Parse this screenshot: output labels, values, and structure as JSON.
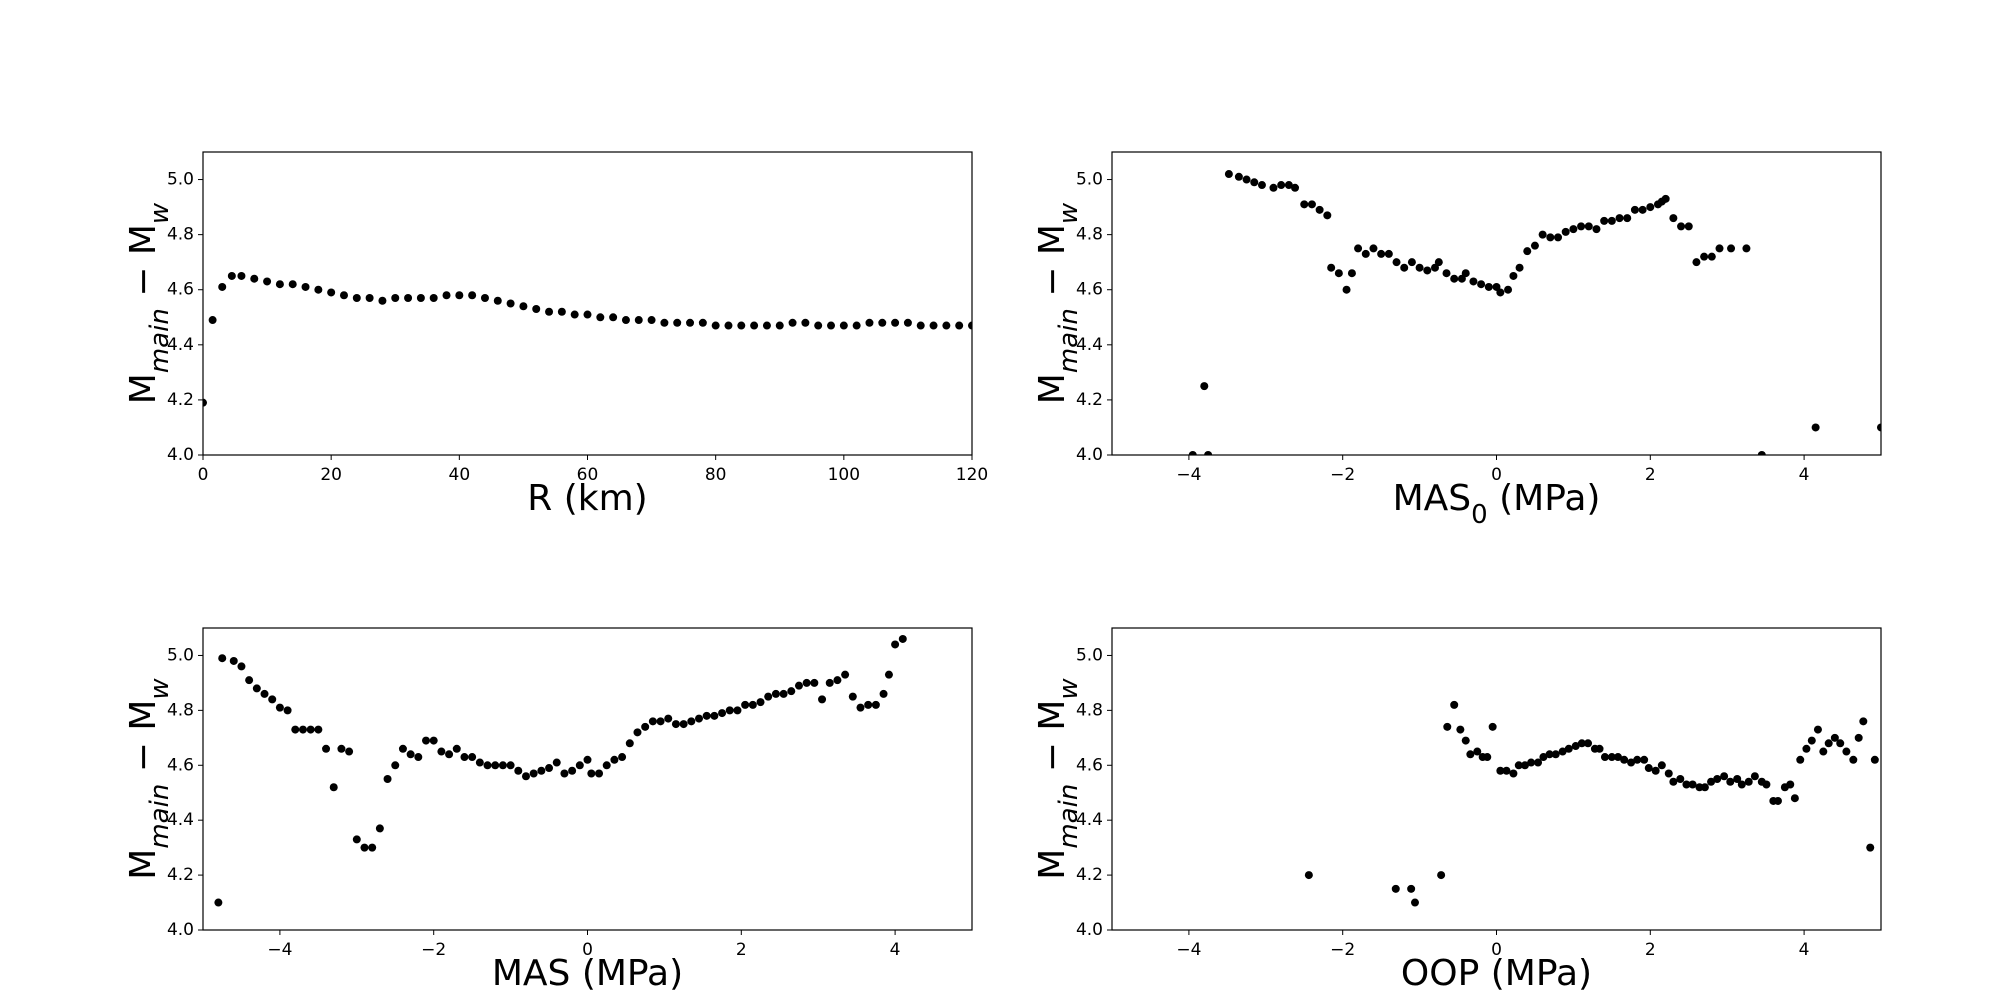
{
  "chart_data": [
    {
      "type": "scatter",
      "color": "#000000",
      "xlabel": "R (km)",
      "ylabel": [
        "M",
        "main",
        " − M",
        "w"
      ],
      "xlim": [
        0,
        120
      ],
      "ylim": [
        4.0,
        5.1
      ],
      "xticks": [
        0,
        20,
        40,
        60,
        80,
        100,
        120
      ],
      "yticks": [
        {
          "value": 4,
          "label": "4.0"
        },
        4.2,
        4.4,
        4.6,
        4.8,
        {
          "value": 5,
          "label": "5.0"
        }
      ],
      "x": [
        0,
        1.5,
        3,
        4.5,
        6,
        8,
        10,
        12,
        14,
        16,
        18,
        20,
        22,
        24,
        26,
        28,
        30,
        32,
        34,
        36,
        38,
        40,
        42,
        44,
        46,
        48,
        50,
        52,
        54,
        56,
        58,
        60,
        62,
        64,
        66,
        68,
        70,
        72,
        74,
        76,
        78,
        80,
        82,
        84,
        86,
        88,
        90,
        92,
        94,
        96,
        98,
        100,
        102,
        104,
        106,
        108,
        110,
        112,
        114,
        116,
        118,
        120
      ],
      "y": [
        4.19,
        4.49,
        4.61,
        4.65,
        4.65,
        4.64,
        4.63,
        4.62,
        4.62,
        4.61,
        4.6,
        4.59,
        4.58,
        4.57,
        4.57,
        4.56,
        4.57,
        4.57,
        4.57,
        4.57,
        4.58,
        4.58,
        4.58,
        4.57,
        4.56,
        4.55,
        4.54,
        4.53,
        4.52,
        4.52,
        4.51,
        4.51,
        4.5,
        4.5,
        4.49,
        4.49,
        4.49,
        4.48,
        4.48,
        4.48,
        4.48,
        4.47,
        4.47,
        4.47,
        4.47,
        4.47,
        4.47,
        4.48,
        4.48,
        4.47,
        4.47,
        4.47,
        4.47,
        4.48,
        4.48,
        4.48,
        4.48,
        4.47,
        4.47,
        4.47,
        4.47,
        4.47
      ]
    },
    {
      "type": "scatter",
      "color": "#000000",
      "xlabel": [
        "MAS",
        "0",
        " (MPa)"
      ],
      "ylabel": [
        "M",
        "main",
        " − M",
        "w"
      ],
      "xlim": [
        -5,
        5
      ],
      "ylim": [
        4.0,
        5.1
      ],
      "xticks": [
        {
          "value": -4,
          "label": "−4"
        },
        {
          "value": -2,
          "label": "−2"
        },
        0,
        2,
        4
      ],
      "yticks": [
        {
          "value": 4,
          "label": "4.0"
        },
        4.2,
        4.4,
        4.6,
        4.8,
        {
          "value": 5,
          "label": "5.0"
        }
      ],
      "x": [
        -3.95,
        -3.8,
        -3.75,
        -3.48,
        -3.35,
        -3.25,
        -3.15,
        -3.05,
        -2.9,
        -2.8,
        -2.7,
        -2.62,
        -2.5,
        -2.4,
        -2.3,
        -2.2,
        -2.15,
        -2.05,
        -1.95,
        -1.88,
        -1.8,
        -1.7,
        -1.6,
        -1.5,
        -1.4,
        -1.3,
        -1.2,
        -1.1,
        -1.0,
        -0.9,
        -0.8,
        -0.75,
        -0.65,
        -0.55,
        -0.45,
        -0.4,
        -0.3,
        -0.2,
        -0.1,
        0,
        0.05,
        0.15,
        0.22,
        0.3,
        0.4,
        0.5,
        0.6,
        0.7,
        0.8,
        0.9,
        1.0,
        1.1,
        1.2,
        1.3,
        1.4,
        1.5,
        1.6,
        1.7,
        1.8,
        1.9,
        2.0,
        2.1,
        2.15,
        2.2,
        2.3,
        2.4,
        2.5,
        2.6,
        2.7,
        2.8,
        2.9,
        3.05,
        3.25,
        3.45,
        4.15,
        5.0
      ],
      "y": [
        4.0,
        4.25,
        4.0,
        5.02,
        5.01,
        5.0,
        4.99,
        4.98,
        4.97,
        4.98,
        4.98,
        4.97,
        4.91,
        4.91,
        4.89,
        4.87,
        4.68,
        4.66,
        4.6,
        4.66,
        4.75,
        4.73,
        4.75,
        4.73,
        4.73,
        4.7,
        4.68,
        4.7,
        4.68,
        4.67,
        4.68,
        4.7,
        4.66,
        4.64,
        4.64,
        4.66,
        4.63,
        4.62,
        4.61,
        4.61,
        4.59,
        4.6,
        4.65,
        4.68,
        4.74,
        4.76,
        4.8,
        4.79,
        4.79,
        4.81,
        4.82,
        4.83,
        4.83,
        4.82,
        4.85,
        4.85,
        4.86,
        4.86,
        4.89,
        4.89,
        4.9,
        4.91,
        4.92,
        4.93,
        4.86,
        4.83,
        4.83,
        4.7,
        4.72,
        4.72,
        4.75,
        4.75,
        4.75,
        4.0,
        4.1,
        4.1
      ]
    },
    {
      "type": "scatter",
      "color": "#000000",
      "xlabel": "MAS (MPa)",
      "ylabel": [
        "M",
        "main",
        " − M",
        "w"
      ],
      "xlim": [
        -5,
        5
      ],
      "ylim": [
        4.0,
        5.1
      ],
      "xticks": [
        {
          "value": -4,
          "label": "−4"
        },
        {
          "value": -2,
          "label": "−2"
        },
        0,
        2,
        4
      ],
      "yticks": [
        {
          "value": 4,
          "label": "4.0"
        },
        4.2,
        4.4,
        4.6,
        4.8,
        {
          "value": 5,
          "label": "5.0"
        }
      ],
      "x": [
        -4.8,
        -4.75,
        -4.6,
        -4.5,
        -4.4,
        -4.3,
        -4.2,
        -4.1,
        -4.0,
        -3.9,
        -3.8,
        -3.7,
        -3.6,
        -3.5,
        -3.4,
        -3.3,
        -3.2,
        -3.1,
        -3.0,
        -2.9,
        -2.8,
        -2.7,
        -2.6,
        -2.5,
        -2.4,
        -2.3,
        -2.2,
        -2.1,
        -2.0,
        -1.9,
        -1.8,
        -1.7,
        -1.6,
        -1.5,
        -1.4,
        -1.3,
        -1.2,
        -1.1,
        -1.0,
        -0.9,
        -0.8,
        -0.7,
        -0.6,
        -0.5,
        -0.4,
        -0.3,
        -0.2,
        -0.1,
        0,
        0.05,
        0.15,
        0.25,
        0.35,
        0.45,
        0.55,
        0.65,
        0.75,
        0.85,
        0.95,
        1.05,
        1.15,
        1.25,
        1.35,
        1.45,
        1.55,
        1.65,
        1.75,
        1.85,
        1.95,
        2.05,
        2.15,
        2.25,
        2.35,
        2.45,
        2.55,
        2.65,
        2.75,
        2.85,
        2.95,
        3.05,
        3.15,
        3.25,
        3.35,
        3.45,
        3.55,
        3.65,
        3.75,
        3.85,
        3.92,
        4.0,
        4.1
      ],
      "y": [
        4.1,
        4.99,
        4.98,
        4.96,
        4.91,
        4.88,
        4.86,
        4.84,
        4.81,
        4.8,
        4.73,
        4.73,
        4.73,
        4.73,
        4.66,
        4.52,
        4.66,
        4.65,
        4.33,
        4.3,
        4.3,
        4.37,
        4.55,
        4.6,
        4.66,
        4.64,
        4.63,
        4.69,
        4.69,
        4.65,
        4.64,
        4.66,
        4.63,
        4.63,
        4.61,
        4.6,
        4.6,
        4.6,
        4.6,
        4.58,
        4.56,
        4.57,
        4.58,
        4.59,
        4.61,
        4.57,
        4.58,
        4.6,
        4.62,
        4.57,
        4.57,
        4.6,
        4.62,
        4.63,
        4.68,
        4.72,
        4.74,
        4.76,
        4.76,
        4.77,
        4.75,
        4.75,
        4.76,
        4.77,
        4.78,
        4.78,
        4.79,
        4.8,
        4.8,
        4.82,
        4.82,
        4.83,
        4.85,
        4.86,
        4.86,
        4.87,
        4.89,
        4.9,
        4.9,
        4.84,
        4.9,
        4.91,
        4.93,
        4.85,
        4.81,
        4.82,
        4.82,
        4.86,
        4.93,
        5.04,
        5.06
      ]
    },
    {
      "type": "scatter",
      "color": "#000000",
      "xlabel": "OOP (MPa)",
      "ylabel": [
        "M",
        "main",
        " − M",
        "w"
      ],
      "xlim": [
        -5,
        5
      ],
      "ylim": [
        4.0,
        5.1
      ],
      "xticks": [
        {
          "value": -4,
          "label": "−4"
        },
        {
          "value": -2,
          "label": "−2"
        },
        0,
        2,
        4
      ],
      "yticks": [
        {
          "value": 4,
          "label": "4.0"
        },
        4.2,
        4.4,
        4.6,
        4.8,
        {
          "value": 5,
          "label": "5.0"
        }
      ],
      "x": [
        -2.44,
        -1.31,
        -1.11,
        -1.06,
        -0.72,
        -0.64,
        -0.55,
        -0.47,
        -0.4,
        -0.34,
        -0.25,
        -0.18,
        -0.12,
        -0.05,
        0.05,
        0.13,
        0.22,
        0.29,
        0.37,
        0.45,
        0.54,
        0.61,
        0.69,
        0.77,
        0.86,
        0.94,
        1.03,
        1.11,
        1.19,
        1.28,
        1.34,
        1.41,
        1.5,
        1.58,
        1.66,
        1.75,
        1.83,
        1.92,
        1.98,
        2.07,
        2.15,
        2.24,
        2.3,
        2.39,
        2.47,
        2.55,
        2.64,
        2.71,
        2.79,
        2.87,
        2.96,
        3.04,
        3.13,
        3.19,
        3.28,
        3.36,
        3.45,
        3.51,
        3.6,
        3.66,
        3.75,
        3.82,
        3.88,
        3.95,
        4.03,
        4.1,
        4.18,
        4.25,
        4.32,
        4.4,
        4.47,
        4.55,
        4.64,
        4.71,
        4.77,
        4.86,
        4.92
      ],
      "y": [
        4.2,
        4.15,
        4.15,
        4.1,
        4.2,
        4.74,
        4.82,
        4.73,
        4.69,
        4.64,
        4.65,
        4.63,
        4.63,
        4.74,
        4.58,
        4.58,
        4.57,
        4.6,
        4.6,
        4.61,
        4.61,
        4.63,
        4.64,
        4.64,
        4.65,
        4.66,
        4.67,
        4.68,
        4.68,
        4.66,
        4.66,
        4.63,
        4.63,
        4.63,
        4.62,
        4.61,
        4.62,
        4.62,
        4.59,
        4.58,
        4.6,
        4.57,
        4.54,
        4.55,
        4.53,
        4.53,
        4.52,
        4.52,
        4.54,
        4.55,
        4.56,
        4.54,
        4.55,
        4.53,
        4.54,
        4.56,
        4.54,
        4.53,
        4.47,
        4.47,
        4.52,
        4.53,
        4.48,
        4.62,
        4.66,
        4.69,
        4.73,
        4.65,
        4.68,
        4.7,
        4.68,
        4.65,
        4.62,
        4.7,
        4.76,
        4.3,
        4.62
      ]
    }
  ]
}
